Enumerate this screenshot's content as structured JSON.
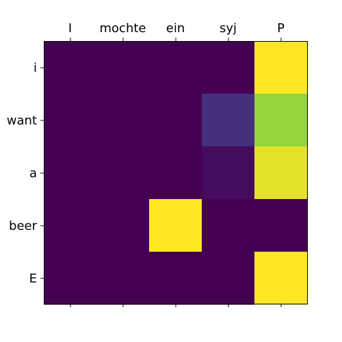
{
  "chart_data": {
    "type": "heatmap",
    "title": "",
    "x_labels": [
      "I",
      "mochte",
      "ein",
      "syj",
      "P"
    ],
    "y_labels": [
      "i",
      "want",
      "a",
      "beer",
      "E"
    ],
    "values": [
      [
        0.0,
        0.0,
        0.0,
        0.0,
        1.0
      ],
      [
        0.0,
        0.0,
        0.0,
        0.16,
        0.84
      ],
      [
        0.0,
        0.0,
        0.0,
        0.04,
        0.96
      ],
      [
        0.0,
        0.0,
        1.0,
        0.0,
        0.0
      ],
      [
        0.0,
        0.0,
        0.0,
        0.0,
        1.0
      ]
    ],
    "colormap": "viridis",
    "value_range": [
      0,
      1
    ],
    "x_tick_position": "top"
  }
}
